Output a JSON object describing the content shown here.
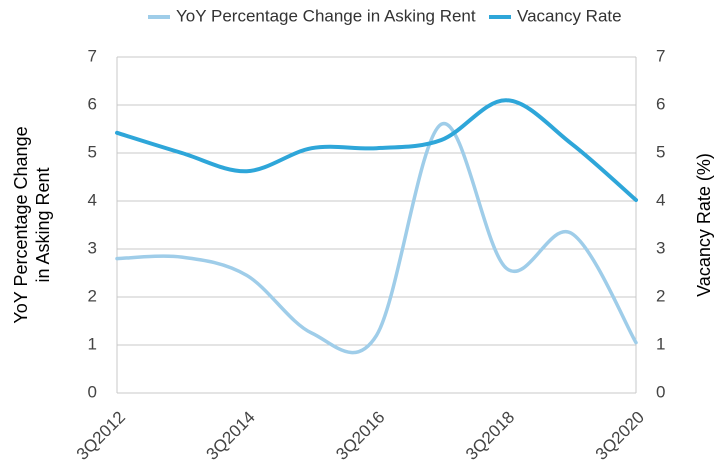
{
  "chart_data": {
    "type": "line",
    "categories": [
      "3Q2012",
      null,
      "3Q2014",
      null,
      "3Q2016",
      null,
      "3Q2018",
      null,
      "3Q2020"
    ],
    "series": [
      {
        "name": "YoY Percentage Change in Asking Rent",
        "color": "#9fcde9",
        "values": [
          2.8,
          2.83,
          2.45,
          1.25,
          1.2,
          5.6,
          2.6,
          3.33,
          1.05
        ]
      },
      {
        "name": "Vacancy Rate",
        "color": "#2ea6d9",
        "axis": "y2",
        "values": [
          5.42,
          5.0,
          4.62,
          5.1,
          5.1,
          5.27,
          6.1,
          5.2,
          4.02
        ]
      }
    ],
    "ylabel": [
      "YoY Percentage Change",
      "in Asking Rent"
    ],
    "y2label": "Vacancy Rate (%)",
    "ylim": [
      0,
      7
    ],
    "yticks": [
      0,
      1,
      2,
      3,
      4,
      5,
      6,
      7
    ],
    "y2lim": [
      0,
      7
    ],
    "y2ticks": [
      0,
      1,
      2,
      3,
      4,
      5,
      6,
      7
    ],
    "grid": true,
    "legend": "top"
  }
}
